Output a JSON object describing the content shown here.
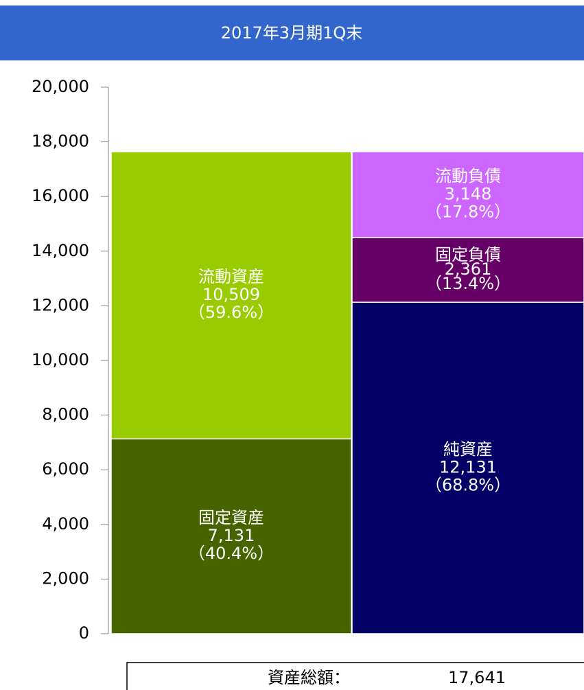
{
  "chart_data": {
    "type": "bar",
    "title": "2017年3月期1Q末",
    "categories": [
      null,
      null
    ],
    "series": [
      {
        "name": "固定資産",
        "color": "#466300",
        "values": [
          7131,
          null
        ],
        "value_labels": [
          "7,131",
          null
        ],
        "percent_labels": [
          "（40.4%）",
          null
        ]
      },
      {
        "name": "流動資産",
        "color": "#99cc00",
        "values": [
          10509,
          null
        ],
        "value_labels": [
          "10,509",
          null
        ],
        "percent_labels": [
          "（59.6%）",
          null
        ]
      },
      {
        "name": "純資産",
        "color": "#000066",
        "values": [
          null,
          12131
        ],
        "value_labels": [
          null,
          "12,131"
        ],
        "percent_labels": [
          null,
          "（68.8%）"
        ]
      },
      {
        "name": "固定負債",
        "color": "#660066",
        "values": [
          null,
          2361
        ],
        "value_labels": [
          null,
          "2,361"
        ],
        "percent_labels": [
          null,
          "（13.4%）"
        ]
      },
      {
        "name": "流動負債",
        "color": "#cc66ff",
        "values": [
          null,
          3148
        ],
        "value_labels": [
          null,
          "3,148"
        ],
        "percent_labels": [
          null,
          "（17.8%）"
        ]
      }
    ],
    "ylim": [
      0,
      20000
    ],
    "yticks": [
      0,
      {
        "value": 2000,
        "label": "2,000"
      },
      {
        "value": 4000,
        "label": "4,000"
      },
      {
        "value": 6000,
        "label": "6,000"
      },
      {
        "value": 8000,
        "label": "8,000"
      },
      {
        "value": 10000,
        "label": "10,000"
      },
      {
        "value": 12000,
        "label": "12,000"
      },
      {
        "value": 14000,
        "label": "14,000"
      },
      {
        "value": 16000,
        "label": "16,000"
      },
      {
        "value": 18000,
        "label": "18,000"
      },
      {
        "value": 20000,
        "label": "20,000"
      }
    ],
    "total_label": "資産総額：",
    "total_value": "17,641"
  }
}
